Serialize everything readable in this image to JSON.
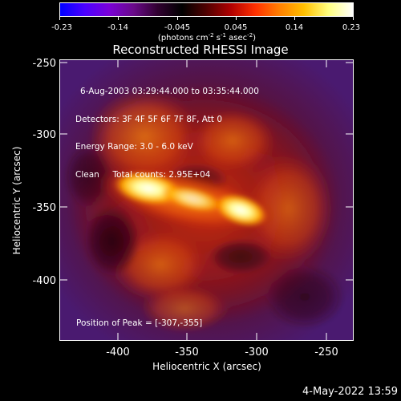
{
  "colorbar": {
    "ticks": [
      "-0.23",
      "-0.14",
      "-0.045",
      "0.045",
      "0.14",
      "0.23"
    ],
    "units_prefix": "(photons cm",
    "units_e1": "-2",
    "units_mid1": " s",
    "units_e2": "-1",
    "units_mid2": " asec",
    "units_e3": "-2",
    "units_suffix": ")",
    "stops": [
      "#0000ff",
      "#4a00ff",
      "#7a00d8",
      "#6a0a8a",
      "#300030",
      "#000000",
      "#500000",
      "#b00000",
      "#ff3000",
      "#ff8000",
      "#ffc000",
      "#ffff80",
      "#ffffff"
    ]
  },
  "title": "Reconstructed RHESSI Image",
  "info": {
    "time": "6-Aug-2003 03:29:44.000 to 03:35:44.000",
    "detectors": "Detectors: 3F 4F 5F 6F 7F 8F, Att 0",
    "energy": "Energy Range: 3.0 - 6.0 keV",
    "clean": "Clean     Total counts: 2.95E+04",
    "peak": "Position of Peak = [-307,-355]"
  },
  "axes": {
    "xlabel": "Heliocentric X (arcsec)",
    "ylabel": "Heliocentric Y (arcsec)",
    "xticks": [
      "-400",
      "-350",
      "-300",
      "-250"
    ],
    "yticks": [
      "-250",
      "-300",
      "-350",
      "-400"
    ]
  },
  "timestamp": "4-May-2022 13:59"
}
